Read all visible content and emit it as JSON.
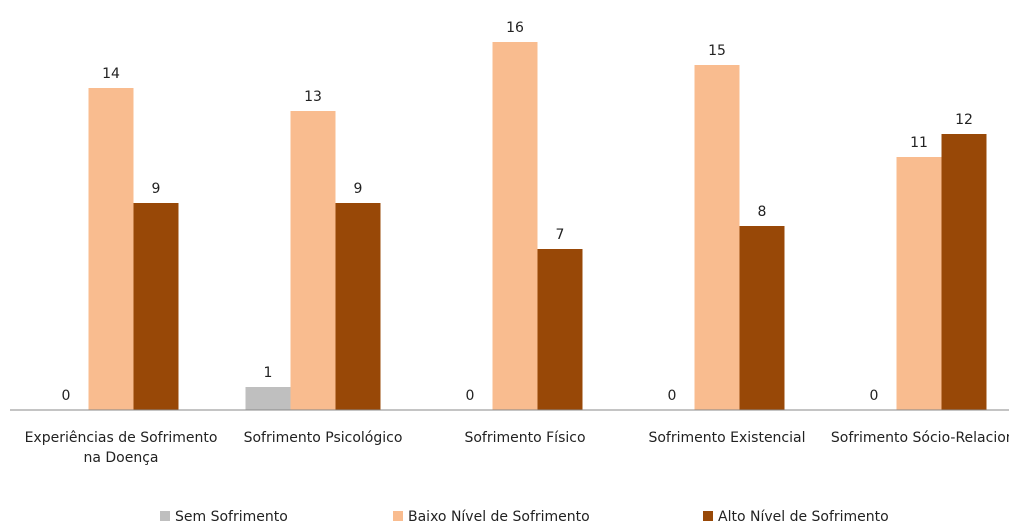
{
  "chart_data": {
    "type": "bar",
    "categories": [
      "Experiências de Sofrimento na Doença",
      "Sofrimento Psicológico",
      "Sofrimento Físico",
      "Sofrimento Existencial",
      "Sofrimento Sócio-Relacional"
    ],
    "series": [
      {
        "name": "Sem Sofrimento",
        "color": "#bfbfbf",
        "values": [
          0,
          1,
          0,
          0,
          0
        ]
      },
      {
        "name": "Baixo Nível de Sofrimento",
        "color": "#f9bc8f",
        "values": [
          14,
          13,
          16,
          15,
          11
        ]
      },
      {
        "name": "Alto Nível de Sofrimento",
        "color": "#984807",
        "values": [
          9,
          9,
          7,
          8,
          12
        ]
      }
    ],
    "legend": "bottom"
  }
}
